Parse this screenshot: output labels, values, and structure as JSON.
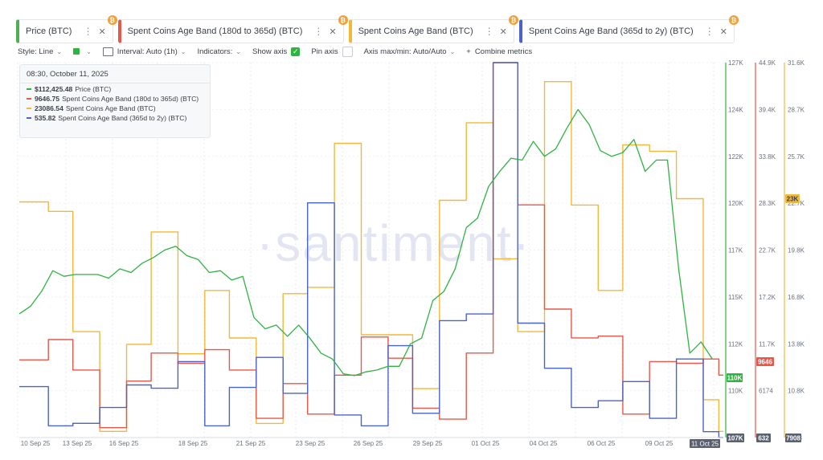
{
  "tabs": [
    {
      "label": "Price (BTC)",
      "color": "#4caf50"
    },
    {
      "label": "Spent Coins Age Band (180d to 365d) (BTC)",
      "color": "#e8584a"
    },
    {
      "label": "Spent Coins Age Band (BTC)",
      "color": "#f3b83a"
    },
    {
      "label": "Spent Coins Age Band (365d to 2y) (BTC)",
      "color": "#4a63c9"
    }
  ],
  "tab_icons": {
    "more": "⋮",
    "close": "✕",
    "badge": "₿"
  },
  "toolbar": {
    "style_label": "Style: Line",
    "interval_label": "Interval: Auto (1h)",
    "indicators_label": "Indicators:",
    "show_axis_label": "Show axis",
    "pin_axis_label": "Pin axis",
    "axis_maxmin_label": "Axis max/min: Auto/Auto",
    "combine_label": "Combine metrics",
    "plus": "+"
  },
  "legend": {
    "date": "08:30, October 11, 2025",
    "rows": [
      {
        "value": "$112,425.48",
        "name": "Price (BTC)",
        "color": "#2fb341"
      },
      {
        "value": "9646.75",
        "name": "Spent Coins Age Band (180d to 365d) (BTC)",
        "color": "#e8584a"
      },
      {
        "value": "23086.54",
        "name": "Spent Coins Age Band (BTC)",
        "color": "#f3b83a"
      },
      {
        "value": "535.82",
        "name": "Spent Coins Age Band (365d to 2y) (BTC)",
        "color": "#4a63c9"
      }
    ]
  },
  "watermark": "·santiment·",
  "chart_data": {
    "type": "line",
    "x_tick_labels": [
      "10 Sep 25",
      "13 Sep 25",
      "16 Sep 25",
      "18 Sep 25",
      "21 Sep 25",
      "23 Sep 25",
      "26 Sep 25",
      "29 Sep 25",
      "01 Oct 25",
      "04 Oct 25",
      "06 Oct 25",
      "09 Oct 25"
    ],
    "x_highlight": "11 Oct 25",
    "x_range_days": [
      0,
      31.5
    ],
    "axes": {
      "price": {
        "ticks": [
          "127K",
          "124K",
          "122K",
          "120K",
          "117K",
          "115K",
          "112K",
          "110K",
          "107K"
        ],
        "range": [
          107000,
          127000
        ],
        "current": "110K",
        "color": "#2fb341"
      },
      "band_180_365": {
        "ticks": [
          "44.9K",
          "39.4K",
          "33.8K",
          "28.3K",
          "22.7K",
          "17.2K",
          "11.7K",
          "6174",
          "632"
        ],
        "range": [
          632,
          44900
        ],
        "current": "9646",
        "color": "#e8584a"
      },
      "band_other": {
        "ticks": [
          "31.6K",
          "28.7K",
          "25.7K",
          "22.7K",
          "19.8K",
          "16.8K",
          "13.8K",
          "10.8K",
          "7908"
        ],
        "range": [
          7908,
          31600
        ],
        "current": "23K",
        "color": "#f3b83a"
      },
      "band_365_2y": {
        "range": [
          0,
          44900
        ],
        "current": "",
        "color": "#4a63c9"
      }
    },
    "series": [
      {
        "name": "Price (BTC)",
        "color": "#2fb341",
        "kind": "line",
        "x": [
          0,
          0.5,
          1,
          1.5,
          2,
          2.5,
          3,
          3.5,
          4,
          4.5,
          5,
          5.5,
          6,
          6.5,
          7,
          7.5,
          8,
          8.5,
          9,
          9.5,
          10,
          10.5,
          11,
          11.5,
          12,
          12.5,
          13,
          13.5,
          14,
          14.5,
          15,
          15.5,
          16,
          16.5,
          17,
          17.5,
          18,
          18.5,
          19,
          19.5,
          20,
          20.5,
          21,
          21.5,
          22,
          22.5,
          23,
          23.5,
          24,
          24.5,
          25,
          25.5,
          26,
          26.5,
          27,
          27.5,
          28,
          28.5,
          29,
          29.5,
          30,
          30.5,
          31
        ],
        "y": [
          113600,
          114000,
          114800,
          115900,
          115600,
          115700,
          115700,
          115700,
          115500,
          116000,
          115800,
          116300,
          116600,
          117000,
          117200,
          116700,
          116500,
          115800,
          115900,
          115400,
          115600,
          113400,
          112800,
          113000,
          112400,
          113000,
          112300,
          111500,
          111200,
          110400,
          110300,
          110500,
          110600,
          110800,
          110800,
          112000,
          112300,
          114300,
          114800,
          116000,
          118200,
          118700,
          120400,
          121200,
          121900,
          121800,
          122800,
          122000,
          122400,
          123500,
          124500,
          123700,
          122300,
          122000,
          122200,
          122900,
          121200,
          121800,
          121800,
          116000,
          111500,
          112100,
          111200
        ]
      },
      {
        "name": "Spent Coins Age Band (180d to 365d) (BTC)",
        "color": "#e8584a",
        "kind": "step",
        "x": [
          0,
          1.3,
          2.4,
          3.6,
          4.8,
          5.9,
          7.1,
          8.3,
          9.4,
          10.6,
          11.8,
          12.9,
          14.1,
          15.3,
          16.5,
          17.6,
          18.8,
          20,
          21.2,
          22.3,
          23.5,
          24.7,
          25.9,
          27,
          28.2,
          29.4,
          30.6,
          31.3
        ],
        "y": [
          9800,
          12200,
          8600,
          1800,
          7300,
          10600,
          9400,
          11000,
          8600,
          2900,
          7000,
          3400,
          8000,
          12500,
          10000,
          4100,
          2800,
          10600,
          44900,
          28100,
          15800,
          12400,
          12600,
          3400,
          9600,
          9400,
          9900,
          8000
        ]
      },
      {
        "name": "Spent Coins Age Band (BTC)",
        "color": "#f3b83a",
        "kind": "step",
        "x": [
          0,
          1.3,
          2.4,
          3.6,
          4.8,
          5.9,
          7.1,
          8.3,
          9.4,
          10.6,
          11.8,
          12.9,
          14.1,
          15.3,
          16.5,
          17.6,
          18.8,
          20,
          21.2,
          22.3,
          23.5,
          24.7,
          25.9,
          27,
          28.2,
          29.4,
          30.6,
          31.3
        ],
        "y": [
          22800,
          22200,
          14600,
          8300,
          13800,
          20900,
          13200,
          17200,
          14200,
          8800,
          17000,
          17400,
          26500,
          14400,
          14400,
          11000,
          22900,
          27800,
          19200,
          14600,
          30400,
          22600,
          17200,
          26400,
          26000,
          23000,
          10300,
          8300
        ]
      },
      {
        "name": "Spent Coins Age Band (365d to 2y) (BTC)",
        "color": "#4a63c9",
        "kind": "step",
        "x": [
          0,
          1.3,
          2.4,
          3.6,
          4.8,
          5.9,
          7.1,
          8.3,
          9.4,
          10.6,
          11.8,
          12.9,
          14.1,
          15.3,
          16.5,
          17.6,
          18.8,
          20,
          21.2,
          22.3,
          23.5,
          24.7,
          25.9,
          27,
          28.2,
          29.4,
          30.6,
          31.3
        ],
        "y": [
          6100,
          1400,
          1700,
          3600,
          6300,
          5900,
          9100,
          1400,
          6000,
          9600,
          5300,
          28100,
          2700,
          1400,
          11000,
          2900,
          14000,
          14800,
          44900,
          13700,
          8300,
          3600,
          4400,
          6700,
          2300,
          9400,
          700,
          0
        ]
      }
    ]
  }
}
